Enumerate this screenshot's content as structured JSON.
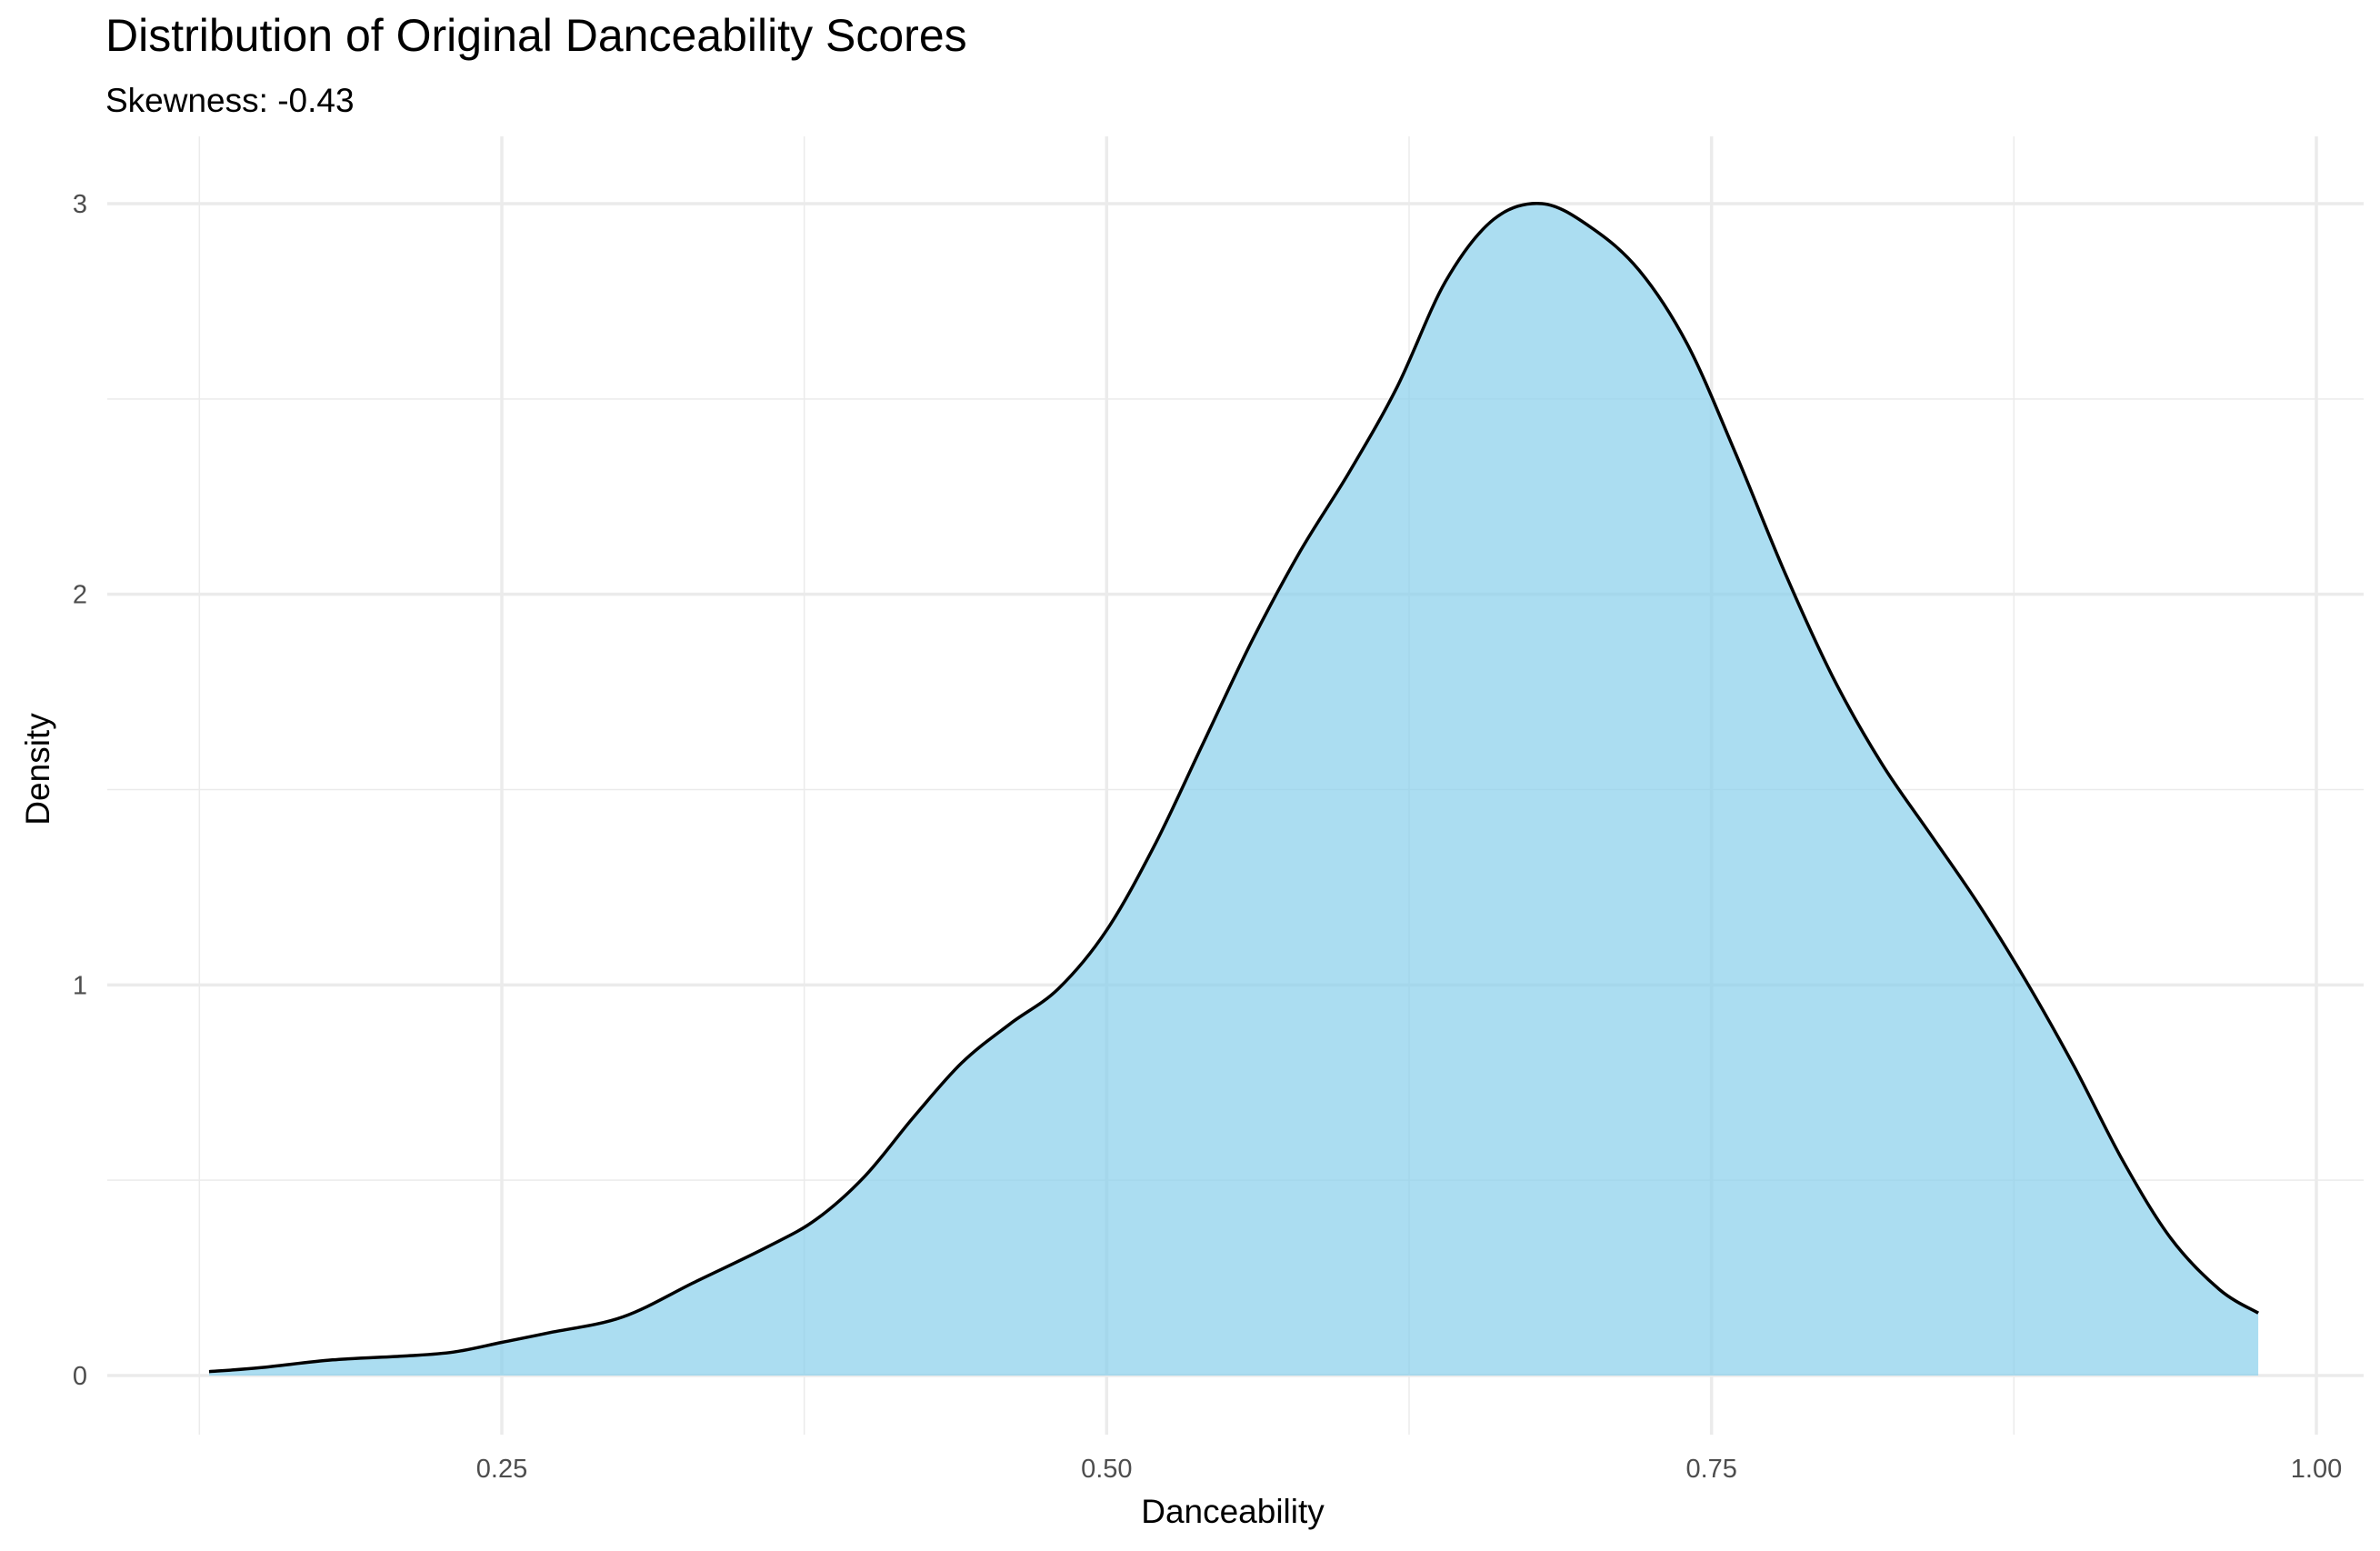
{
  "chart_data": {
    "type": "area",
    "title": "Distribution of Original Danceability Scores",
    "subtitle": "Skewness: -0.43",
    "xlabel": "Danceability",
    "ylabel": "Density",
    "xlim": [
      0.1,
      1.0
    ],
    "ylim": [
      0,
      3
    ],
    "x_ticks": [
      0.25,
      0.5,
      0.75,
      1.0
    ],
    "x_tick_labels": [
      "0.25",
      "0.50",
      "0.75",
      "1.00"
    ],
    "x_minor_ticks": [
      0.125,
      0.375,
      0.625,
      0.875
    ],
    "y_ticks": [
      0,
      1,
      2,
      3
    ],
    "y_tick_labels": [
      "0",
      "1",
      "2",
      "3"
    ],
    "y_minor_ticks": [
      0.5,
      1.5,
      2.5
    ],
    "grid": true,
    "fill_color": "#87CEEB",
    "fill_opacity": 0.7,
    "line_color": "#000000",
    "series": [
      {
        "x": [
          0.129,
          0.15,
          0.18,
          0.21,
          0.23,
          0.25,
          0.27,
          0.3,
          0.33,
          0.36,
          0.38,
          0.4,
          0.42,
          0.44,
          0.46,
          0.48,
          0.5,
          0.52,
          0.54,
          0.56,
          0.58,
          0.6,
          0.62,
          0.64,
          0.66,
          0.68,
          0.7,
          0.72,
          0.74,
          0.76,
          0.78,
          0.8,
          0.82,
          0.84,
          0.86,
          0.88,
          0.9,
          0.92,
          0.94,
          0.96,
          0.976
        ],
        "y": [
          0.01,
          0.02,
          0.04,
          0.05,
          0.06,
          0.085,
          0.11,
          0.15,
          0.24,
          0.33,
          0.4,
          0.51,
          0.66,
          0.8,
          0.9,
          0.99,
          1.14,
          1.36,
          1.62,
          1.88,
          2.11,
          2.31,
          2.53,
          2.8,
          2.96,
          3.0,
          2.94,
          2.83,
          2.64,
          2.36,
          2.06,
          1.79,
          1.57,
          1.39,
          1.21,
          1.01,
          0.79,
          0.55,
          0.35,
          0.22,
          0.16
        ]
      }
    ]
  }
}
